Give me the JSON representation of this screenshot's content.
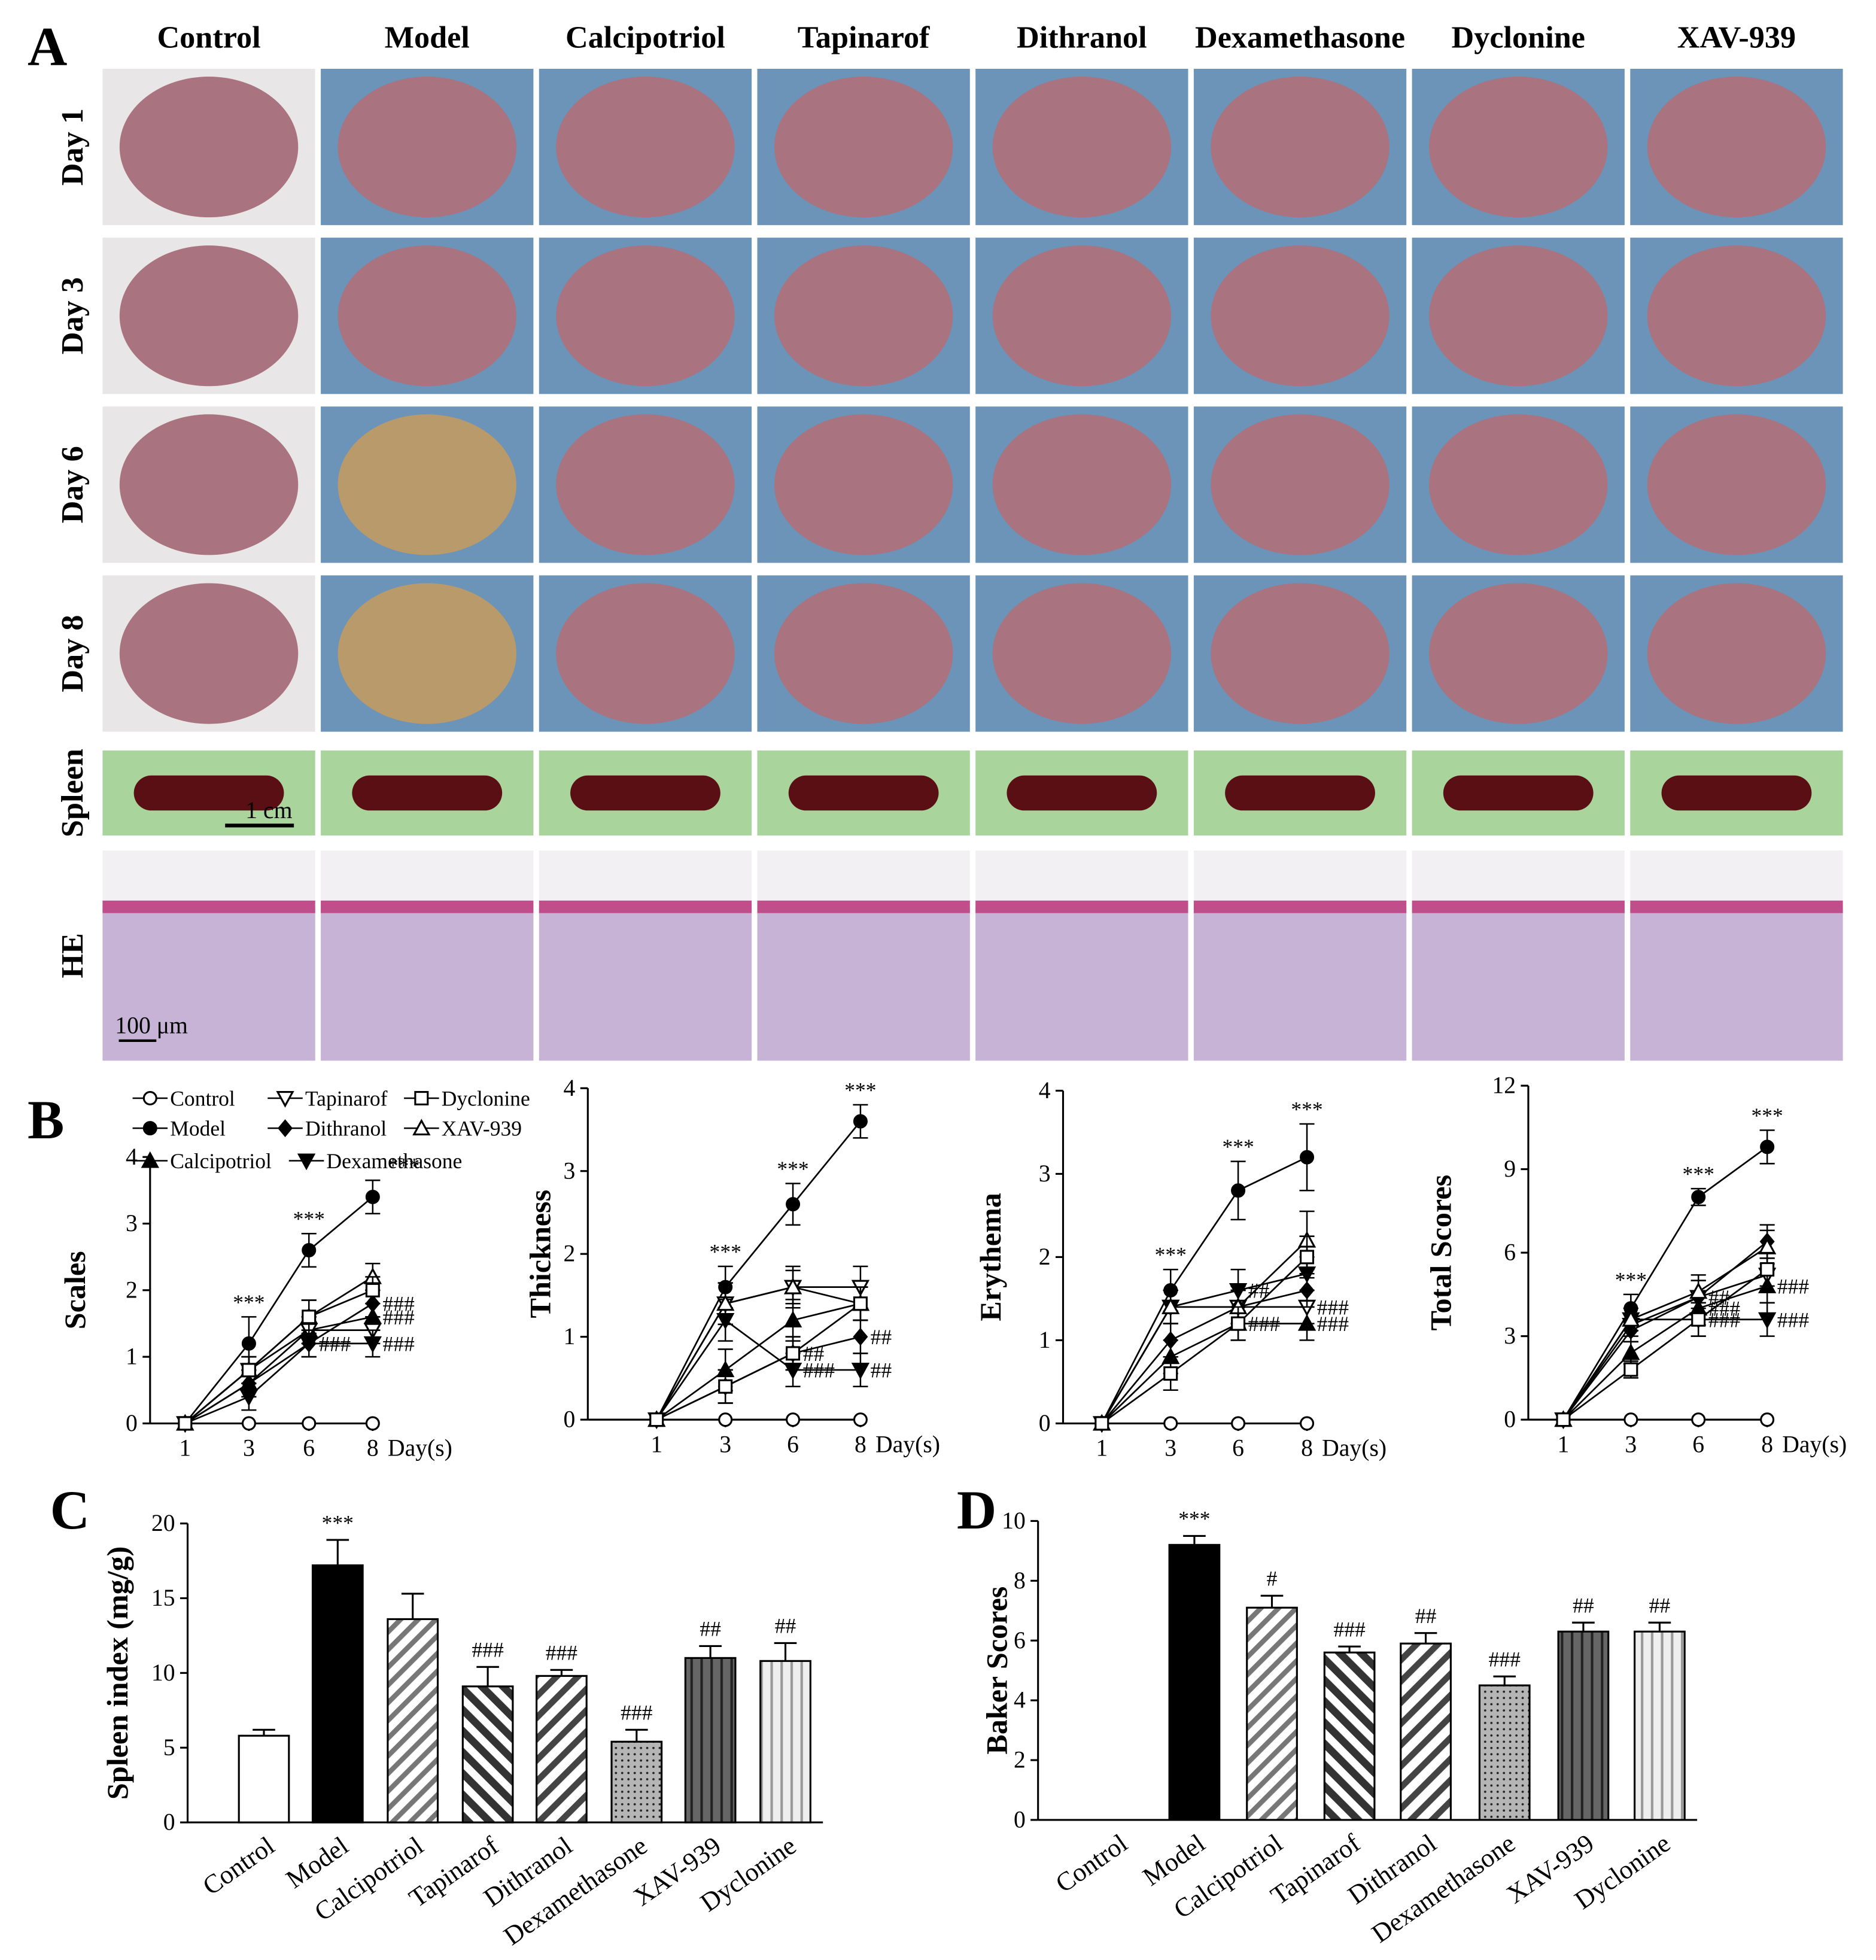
{
  "panel_a": {
    "label": "A",
    "columns": [
      "Control",
      "Model",
      "Calcipotriol",
      "Tapinarof",
      "Dithranol",
      "Dexamethasone",
      "Dyclonine",
      "XAV-939"
    ],
    "rows": [
      "Day 1",
      "Day 3",
      "Day 6",
      "Day 8",
      "Spleen",
      "HE"
    ],
    "scale_bars": [
      "1 cm",
      "100 μm"
    ]
  },
  "chart_data": [
    {
      "type": "line",
      "panel": "B",
      "y_label": "Scales",
      "x_label": "Day(s)",
      "color": "#000000",
      "legend": true,
      "categories": [
        "1",
        "3",
        "6",
        "8"
      ],
      "ylim": [
        0,
        4
      ],
      "yticks": [
        0,
        1,
        2,
        3,
        4
      ],
      "series": [
        {
          "name": "Control",
          "marker": "circle-open",
          "values": [
            0,
            0,
            0,
            0
          ],
          "errors": [
            0,
            0,
            0,
            0
          ],
          "annotations": [
            null,
            null,
            null,
            null
          ]
        },
        {
          "name": "Model",
          "marker": "circle",
          "values": [
            0,
            1.2,
            2.6,
            3.4
          ],
          "errors": [
            0,
            0.4,
            0.25,
            0.25
          ],
          "annotations": [
            null,
            "***",
            "***",
            "***"
          ]
        },
        {
          "name": "Calcipotriol",
          "marker": "triangle-up",
          "values": [
            0,
            0.6,
            1.4,
            1.6
          ],
          "errors": [
            0,
            0.2,
            0.2,
            0.2
          ],
          "annotations": [
            null,
            null,
            null,
            "###"
          ]
        },
        {
          "name": "Tapinarof",
          "marker": "triangle-down-open",
          "values": [
            0,
            0.8,
            1.4,
            1.4
          ],
          "errors": [
            0,
            0.2,
            0.2,
            0.2
          ],
          "annotations": [
            null,
            null,
            null,
            null
          ]
        },
        {
          "name": "Dithranol",
          "marker": "diamond",
          "values": [
            0,
            0.6,
            1.2,
            1.8
          ],
          "errors": [
            0,
            0.2,
            0.2,
            0.2
          ],
          "annotations": [
            null,
            null,
            "##",
            "###"
          ]
        },
        {
          "name": "Dexamethasone",
          "marker": "triangle-down",
          "values": [
            0,
            0.4,
            1.2,
            1.2
          ],
          "errors": [
            0,
            0.2,
            0.2,
            0.2
          ],
          "annotations": [
            null,
            null,
            "###",
            "###"
          ]
        },
        {
          "name": "XAV-939",
          "marker": "triangle-up-open",
          "values": [
            0,
            0.8,
            1.6,
            2.2
          ],
          "errors": [
            0,
            0.2,
            0.25,
            0.2
          ],
          "annotations": [
            null,
            null,
            null,
            null
          ]
        },
        {
          "name": "Dyclonine",
          "marker": "square-open",
          "values": [
            0,
            0.8,
            1.6,
            2.0
          ],
          "errors": [
            0,
            0.2,
            0.25,
            0.2
          ],
          "annotations": [
            null,
            null,
            null,
            null
          ]
        }
      ]
    },
    {
      "type": "line",
      "y_label": "Thickness",
      "x_label": "Day(s)",
      "color": "#000000",
      "categories": [
        "1",
        "3",
        "6",
        "8"
      ],
      "ylim": [
        0,
        4
      ],
      "yticks": [
        0,
        1,
        2,
        3,
        4
      ],
      "series": [
        {
          "marker": "circle-open",
          "values": [
            0,
            0,
            0,
            0
          ],
          "errors": [
            0,
            0,
            0,
            0
          ],
          "annotations": [
            null,
            null,
            null,
            null
          ]
        },
        {
          "marker": "circle",
          "values": [
            0,
            1.6,
            2.6,
            3.6
          ],
          "errors": [
            0,
            0.25,
            0.25,
            0.2
          ],
          "annotations": [
            null,
            "***",
            "***",
            "***"
          ]
        },
        {
          "marker": "triangle-up",
          "values": [
            0,
            0.6,
            1.2,
            1.4
          ],
          "errors": [
            0,
            0.25,
            0.25,
            0.2
          ],
          "annotations": [
            null,
            null,
            null,
            null
          ]
        },
        {
          "marker": "triangle-down-open",
          "values": [
            0,
            1.4,
            1.6,
            1.6
          ],
          "errors": [
            0,
            0.25,
            0.25,
            0.25
          ],
          "annotations": [
            null,
            null,
            null,
            null
          ]
        },
        {
          "marker": "diamond",
          "values": [
            0,
            0.4,
            0.8,
            1.0
          ],
          "errors": [
            0,
            0.2,
            0.2,
            0.2
          ],
          "annotations": [
            null,
            null,
            "##",
            "##"
          ]
        },
        {
          "marker": "triangle-down",
          "values": [
            0,
            1.2,
            0.6,
            0.6
          ],
          "errors": [
            0,
            0.25,
            0.2,
            0.2
          ],
          "annotations": [
            null,
            null,
            "###",
            "##"
          ]
        },
        {
          "marker": "triangle-up-open",
          "values": [
            0,
            1.4,
            1.6,
            1.4
          ],
          "errors": [
            0,
            0.25,
            0.2,
            0.2
          ],
          "annotations": [
            null,
            null,
            null,
            null
          ]
        },
        {
          "marker": "square-open",
          "values": [
            0,
            0.4,
            0.8,
            1.4
          ],
          "errors": [
            0,
            0.2,
            0.2,
            0.2
          ],
          "annotations": [
            null,
            null,
            null,
            null
          ]
        }
      ]
    },
    {
      "type": "line",
      "y_label": "Erythema",
      "x_label": "Day(s)",
      "color": "#000000",
      "categories": [
        "1",
        "3",
        "6",
        "8"
      ],
      "ylim": [
        0,
        4
      ],
      "yticks": [
        0,
        1,
        2,
        3,
        4
      ],
      "series": [
        {
          "marker": "circle-open",
          "values": [
            0,
            0,
            0,
            0
          ],
          "errors": [
            0,
            0,
            0,
            0
          ],
          "annotations": [
            null,
            null,
            null,
            null
          ]
        },
        {
          "marker": "circle",
          "values": [
            0,
            1.6,
            2.8,
            3.2
          ],
          "errors": [
            0,
            0.25,
            0.35,
            0.4
          ],
          "annotations": [
            null,
            "***",
            "***",
            "***"
          ]
        },
        {
          "marker": "triangle-up",
          "values": [
            0,
            0.8,
            1.2,
            1.2
          ],
          "errors": [
            0,
            0.2,
            0.2,
            0.2
          ],
          "annotations": [
            null,
            null,
            "###",
            "###"
          ]
        },
        {
          "marker": "triangle-down-open",
          "values": [
            0,
            1.4,
            1.4,
            1.4
          ],
          "errors": [
            0,
            0.2,
            0.2,
            0.2
          ],
          "annotations": [
            null,
            null,
            null,
            "###"
          ]
        },
        {
          "marker": "diamond",
          "values": [
            0,
            1.0,
            1.4,
            1.6
          ],
          "errors": [
            0,
            0.2,
            0.2,
            0.2
          ],
          "annotations": [
            null,
            null,
            null,
            null
          ]
        },
        {
          "marker": "triangle-down",
          "values": [
            0,
            1.4,
            1.6,
            1.8
          ],
          "errors": [
            0,
            0.2,
            0.25,
            0.2
          ],
          "annotations": [
            null,
            null,
            "##",
            null
          ]
        },
        {
          "marker": "triangle-up-open",
          "values": [
            0,
            1.4,
            1.4,
            2.2
          ],
          "errors": [
            0,
            0.2,
            0.25,
            0.35
          ],
          "annotations": [
            null,
            null,
            null,
            null
          ]
        },
        {
          "marker": "square-open",
          "values": [
            0,
            0.6,
            1.2,
            2.0
          ],
          "errors": [
            0,
            0.2,
            0.2,
            0.25
          ],
          "annotations": [
            null,
            null,
            null,
            null
          ]
        }
      ]
    },
    {
      "type": "line",
      "y_label": "Total Scores",
      "x_label": "Day(s)",
      "color": "#000000",
      "categories": [
        "1",
        "3",
        "6",
        "8"
      ],
      "ylim": [
        0,
        12
      ],
      "yticks": [
        0,
        3,
        6,
        9,
        12
      ],
      "series": [
        {
          "marker": "circle-open",
          "values": [
            0,
            0,
            0,
            0
          ],
          "errors": [
            0,
            0,
            0,
            0
          ],
          "annotations": [
            null,
            null,
            null,
            null
          ]
        },
        {
          "marker": "circle",
          "values": [
            0,
            4.0,
            8.0,
            9.8
          ],
          "errors": [
            0,
            0.5,
            0.3,
            0.6
          ],
          "annotations": [
            null,
            "***",
            "***",
            "***"
          ]
        },
        {
          "marker": "triangle-up",
          "values": [
            0,
            2.4,
            4.0,
            4.8
          ],
          "errors": [
            0,
            0.4,
            0.6,
            0.6
          ],
          "annotations": [
            null,
            null,
            "###",
            "###"
          ]
        },
        {
          "marker": "triangle-down-open",
          "values": [
            0,
            3.4,
            4.4,
            5.2
          ],
          "errors": [
            0,
            0.4,
            0.6,
            0.6
          ],
          "annotations": [
            null,
            null,
            null,
            null
          ]
        },
        {
          "marker": "diamond",
          "values": [
            0,
            3.2,
            4.4,
            6.4
          ],
          "errors": [
            0,
            0.4,
            0.6,
            0.6
          ],
          "annotations": [
            null,
            null,
            "##",
            null
          ]
        },
        {
          "marker": "triangle-down",
          "values": [
            0,
            3.6,
            3.6,
            3.6
          ],
          "errors": [
            0,
            0.4,
            0.6,
            0.6
          ],
          "annotations": [
            null,
            null,
            "###",
            "###"
          ]
        },
        {
          "marker": "triangle-up-open",
          "values": [
            0,
            3.6,
            4.6,
            6.2
          ],
          "errors": [
            0,
            0.4,
            0.6,
            0.6
          ],
          "annotations": [
            null,
            null,
            null,
            null
          ]
        },
        {
          "marker": "square-open",
          "values": [
            0,
            1.8,
            3.6,
            5.4
          ],
          "errors": [
            0,
            0.3,
            0.6,
            0.6
          ],
          "annotations": [
            null,
            null,
            null,
            null
          ]
        }
      ]
    },
    {
      "type": "bar",
      "panel": "C",
      "y_label": "Spleen index (mg/g)",
      "categories": [
        "Control",
        "Model",
        "Calcipotriol",
        "Tapinarof",
        "Dithranol",
        "Dexamethasone",
        "XAV-939",
        "Dyclonine"
      ],
      "values": [
        5.8,
        17.2,
        13.6,
        9.1,
        9.8,
        5.4,
        11.0,
        10.8
      ],
      "errors": [
        0.4,
        1.7,
        1.7,
        1.3,
        0.4,
        0.8,
        0.8,
        1.2
      ],
      "annotations": [
        null,
        "***",
        null,
        "###",
        "###",
        "###",
        "##",
        "##"
      ],
      "colors": [
        "#ffffff",
        "#000000",
        "#ffffff",
        "#ffffff",
        "#ffffff",
        "#aaaaaa",
        "#555555",
        "#dddddd"
      ],
      "hatch": [
        null,
        null,
        "diag-light",
        "back-diag",
        "diag",
        "dots",
        "vlines",
        "vlines-light"
      ],
      "ylim": [
        0,
        20
      ],
      "yticks": [
        0,
        5,
        10,
        15,
        20
      ]
    },
    {
      "type": "bar",
      "panel": "D",
      "y_label": "Baker Scores",
      "categories": [
        "Control",
        "Model",
        "Calcipotriol",
        "Tapinarof",
        "Dithranol",
        "Dexamethasone",
        "XAV-939",
        "Dyclonine"
      ],
      "values": [
        0,
        9.2,
        7.1,
        5.6,
        5.9,
        4.5,
        6.3,
        6.3
      ],
      "errors": [
        0,
        0.3,
        0.4,
        0.2,
        0.35,
        0.3,
        0.3,
        0.3
      ],
      "annotations": [
        null,
        "***",
        "#",
        "###",
        "##",
        "###",
        "##",
        "##"
      ],
      "colors": [
        "#ffffff",
        "#000000",
        "#ffffff",
        "#ffffff",
        "#ffffff",
        "#aaaaaa",
        "#555555",
        "#dddddd"
      ],
      "hatch": [
        null,
        null,
        "diag-light",
        "back-diag",
        "diag",
        "dots",
        "vlines",
        "vlines-light"
      ],
      "ylim": [
        0,
        10
      ],
      "yticks": [
        0,
        2,
        4,
        6,
        8,
        10
      ]
    }
  ]
}
